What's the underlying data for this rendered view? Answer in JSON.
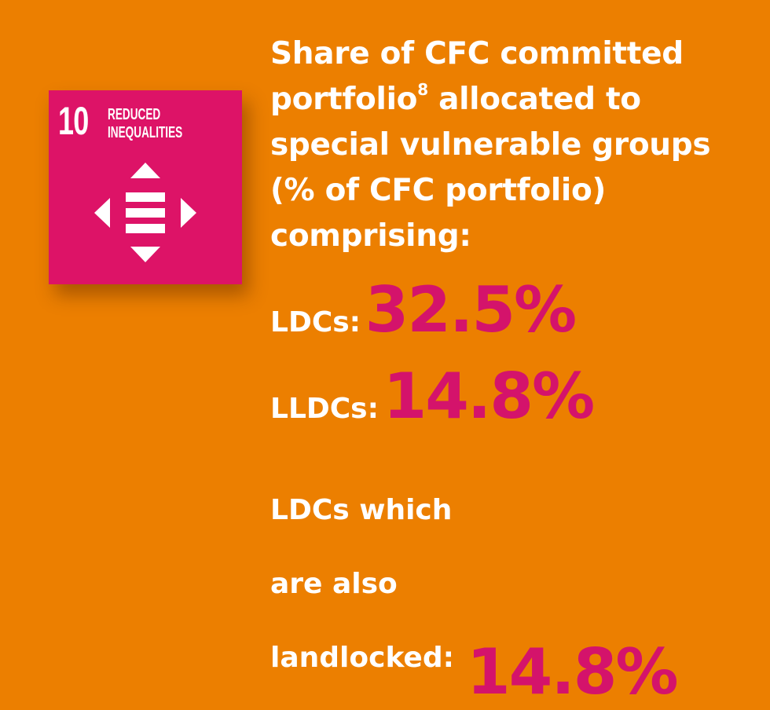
{
  "icon": {
    "number": "10",
    "label": [
      "REDUCED",
      "INEQUALITIES"
    ]
  },
  "heading": [
    {
      "text": "Share of CFC committed"
    },
    {
      "text": "portfolio",
      "footnote": "8",
      "after": " allocated to"
    },
    {
      "text": "special vulnerable groups"
    },
    {
      "text": "(% of CFC portfolio)"
    },
    {
      "text": "comprising:"
    }
  ],
  "stats": [
    {
      "label": "LDCs:",
      "value": "32.5%"
    },
    {
      "label": "LLDCs:",
      "value": "14.8%"
    },
    {
      "label_lines": [
        "LDCs which",
        "are also",
        "landlocked:"
      ],
      "value": "14.8%"
    }
  ]
}
